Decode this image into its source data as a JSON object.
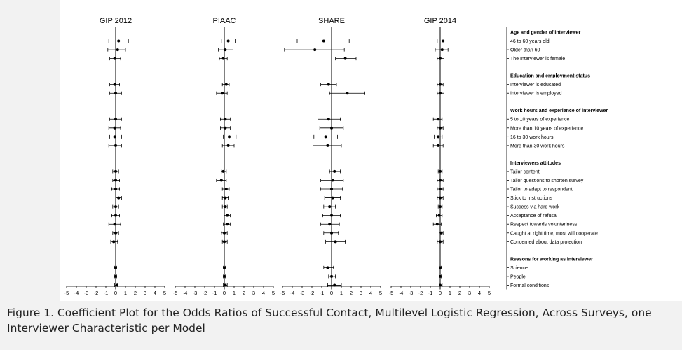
{
  "caption": "Figure 1. Coefficient Plot for the Odds Ratios of Successful Contact, Multilevel Logistic Regression, Across Surveys, one Interviewer Characteristic per Model",
  "chart_data": {
    "type": "scatter",
    "subtype": "coefficient-plot",
    "xlim": [
      -5,
      5
    ],
    "xticks": [
      "-5",
      "-4",
      "-3",
      "-2",
      "-1",
      "0",
      "1",
      "2",
      "3",
      "4",
      "5"
    ],
    "reference_line": 0,
    "groups": [
      {
        "label": "Age and gender of interviewer",
        "items": [
          "46 to 60 years old",
          "Older than 60",
          "The Interviewer is female"
        ]
      },
      {
        "label": "Education and employment status",
        "items": [
          "Interviewer is educated",
          "Interviewer is employed"
        ]
      },
      {
        "label": "Work hours and experience of interviewer",
        "items": [
          "5 to 10 years of experience",
          "More than 10 years of experience",
          "16 to 30 work hours",
          "More than 30 work hours"
        ]
      },
      {
        "label": "Interviewers attitudes",
        "items": [
          "Tailor content",
          "Tailor questions to shorten survey",
          "Tailor to adapt to respondent",
          "Stick to instructions",
          "Success via hard work",
          "Acceptance of refusal",
          "Respect towards voluntariness",
          "Caught at right time, most will cooperate",
          "Concerned about data protection"
        ]
      },
      {
        "label": "Reasons for working as interviewer",
        "items": [
          "Science",
          "People",
          "Formal conditions"
        ]
      }
    ],
    "panels": [
      {
        "name": "GIP 2012",
        "points": [
          {
            "est": 0.3,
            "lo": -0.7,
            "hi": 1.3
          },
          {
            "est": 0.2,
            "lo": -0.8,
            "hi": 1.0
          },
          {
            "est": -0.1,
            "lo": -0.6,
            "hi": 0.5
          },
          {
            "est": -0.1,
            "lo": -0.6,
            "hi": 0.4
          },
          {
            "est": 0.0,
            "lo": -0.6,
            "hi": 0.6
          },
          {
            "est": 0.0,
            "lo": -0.6,
            "hi": 0.6
          },
          {
            "est": -0.1,
            "lo": -0.7,
            "hi": 0.5
          },
          {
            "est": -0.1,
            "lo": -0.6,
            "hi": 0.6
          },
          {
            "est": 0.0,
            "lo": -0.7,
            "hi": 0.6
          },
          {
            "est": 0.0,
            "lo": -0.3,
            "hi": 0.3
          },
          {
            "est": 0.0,
            "lo": -0.3,
            "hi": 0.4
          },
          {
            "est": 0.0,
            "lo": -0.4,
            "hi": 0.4
          },
          {
            "est": 0.3,
            "lo": 0.0,
            "hi": 0.6
          },
          {
            "est": 0.0,
            "lo": -0.3,
            "hi": 0.3
          },
          {
            "est": 0.0,
            "lo": -0.4,
            "hi": 0.4
          },
          {
            "est": -0.1,
            "lo": -0.7,
            "hi": 0.5
          },
          {
            "est": 0.0,
            "lo": -0.3,
            "hi": 0.3
          },
          {
            "est": -0.2,
            "lo": -0.5,
            "hi": 0.2
          },
          {
            "est": 0.0,
            "lo": -0.1,
            "hi": 0.1
          },
          {
            "est": 0.0,
            "lo": -0.1,
            "hi": 0.1
          },
          {
            "est": 0.1,
            "lo": -0.1,
            "hi": 0.2
          }
        ]
      },
      {
        "name": "PIAAC",
        "points": [
          {
            "est": 0.4,
            "lo": -0.3,
            "hi": 1.1
          },
          {
            "est": 0.1,
            "lo": -0.6,
            "hi": 0.9
          },
          {
            "est": -0.1,
            "lo": -0.5,
            "hi": 0.3
          },
          {
            "est": 0.2,
            "lo": -0.2,
            "hi": 0.5
          },
          {
            "est": -0.2,
            "lo": -0.8,
            "hi": 0.3
          },
          {
            "est": 0.1,
            "lo": -0.4,
            "hi": 0.6
          },
          {
            "est": 0.1,
            "lo": -0.4,
            "hi": 0.6
          },
          {
            "est": 0.5,
            "lo": -0.1,
            "hi": 1.2
          },
          {
            "est": 0.4,
            "lo": -0.2,
            "hi": 1.0
          },
          {
            "est": -0.1,
            "lo": -0.3,
            "hi": 0.2
          },
          {
            "est": -0.3,
            "lo": -0.8,
            "hi": 0.2
          },
          {
            "est": 0.2,
            "lo": -0.2,
            "hi": 0.5
          },
          {
            "est": 0.1,
            "lo": -0.2,
            "hi": 0.4
          },
          {
            "est": 0.1,
            "lo": -0.2,
            "hi": 0.3
          },
          {
            "est": 0.3,
            "lo": 0.0,
            "hi": 0.6
          },
          {
            "est": 0.3,
            "lo": -0.1,
            "hi": 0.6
          },
          {
            "est": 0.0,
            "lo": -0.3,
            "hi": 0.3
          },
          {
            "est": 0.0,
            "lo": -0.2,
            "hi": 0.3
          },
          {
            "est": 0.0,
            "lo": -0.1,
            "hi": 0.1
          },
          {
            "est": 0.0,
            "lo": -0.1,
            "hi": 0.1
          },
          {
            "est": 0.1,
            "lo": -0.1,
            "hi": 0.3
          }
        ]
      },
      {
        "name": "SHARE",
        "points": [
          {
            "est": -0.8,
            "lo": -3.5,
            "hi": 1.8
          },
          {
            "est": -1.7,
            "lo": -4.8,
            "hi": 1.3
          },
          {
            "est": 1.4,
            "lo": 0.4,
            "hi": 2.5
          },
          {
            "est": -0.3,
            "lo": -1.1,
            "hi": 0.5
          },
          {
            "est": 1.6,
            "lo": -0.2,
            "hi": 3.4
          },
          {
            "est": -0.3,
            "lo": -1.4,
            "hi": 0.9
          },
          {
            "est": 0.0,
            "lo": -1.2,
            "hi": 1.2
          },
          {
            "est": -0.6,
            "lo": -1.8,
            "hi": 0.6
          },
          {
            "est": -0.4,
            "lo": -1.9,
            "hi": 1.0
          },
          {
            "est": 0.3,
            "lo": -0.2,
            "hi": 0.9
          },
          {
            "est": 0.1,
            "lo": -1.1,
            "hi": 1.2
          },
          {
            "est": 0.0,
            "lo": -1.1,
            "hi": 1.1
          },
          {
            "est": 0.1,
            "lo": -0.7,
            "hi": 0.9
          },
          {
            "est": -0.2,
            "lo": -0.8,
            "hi": 0.4
          },
          {
            "est": 0.0,
            "lo": -0.9,
            "hi": 0.9
          },
          {
            "est": -0.2,
            "lo": -1.1,
            "hi": 0.8
          },
          {
            "est": 0.0,
            "lo": -0.8,
            "hi": 0.7
          },
          {
            "est": 0.4,
            "lo": -0.6,
            "hi": 1.4
          },
          {
            "est": -0.4,
            "lo": -0.8,
            "hi": 0.2
          },
          {
            "est": 0.0,
            "lo": -0.3,
            "hi": 0.4
          },
          {
            "est": 0.3,
            "lo": -0.4,
            "hi": 1.0
          }
        ]
      },
      {
        "name": "GIP 2014",
        "points": [
          {
            "est": 0.3,
            "lo": -0.3,
            "hi": 0.9
          },
          {
            "est": 0.2,
            "lo": -0.5,
            "hi": 0.8
          },
          {
            "est": 0.0,
            "lo": -0.3,
            "hi": 0.4
          },
          {
            "est": 0.0,
            "lo": -0.3,
            "hi": 0.3
          },
          {
            "est": 0.0,
            "lo": -0.3,
            "hi": 0.4
          },
          {
            "est": -0.2,
            "lo": -0.7,
            "hi": 0.2
          },
          {
            "est": 0.0,
            "lo": -0.3,
            "hi": 0.3
          },
          {
            "est": -0.2,
            "lo": -0.6,
            "hi": 0.2
          },
          {
            "est": -0.2,
            "lo": -0.7,
            "hi": 0.3
          },
          {
            "est": 0.0,
            "lo": -0.2,
            "hi": 0.2
          },
          {
            "est": 0.0,
            "lo": -0.3,
            "hi": 0.3
          },
          {
            "est": 0.0,
            "lo": -0.3,
            "hi": 0.3
          },
          {
            "est": 0.0,
            "lo": -0.3,
            "hi": 0.3
          },
          {
            "est": 0.0,
            "lo": -0.2,
            "hi": 0.2
          },
          {
            "est": -0.1,
            "lo": -0.4,
            "hi": 0.2
          },
          {
            "est": -0.3,
            "lo": -0.7,
            "hi": 0.1
          },
          {
            "est": 0.1,
            "lo": -0.1,
            "hi": 0.3
          },
          {
            "est": 0.0,
            "lo": -0.3,
            "hi": 0.3
          },
          {
            "est": 0.0,
            "lo": -0.1,
            "hi": 0.1
          },
          {
            "est": 0.0,
            "lo": -0.1,
            "hi": 0.1
          },
          {
            "est": 0.0,
            "lo": -0.1,
            "hi": 0.2
          }
        ]
      }
    ]
  }
}
